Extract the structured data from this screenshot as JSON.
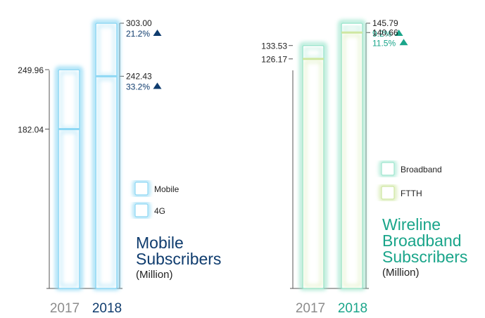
{
  "colors": {
    "mobile_blue": "#0f3c6e",
    "wireline_green": "#1aa58a",
    "year_grey": "#8c8c8c",
    "tick_text": "#222222",
    "axis_line": "#555555",
    "bar_blue_glow": "#8fd8f4",
    "bar_green_glow": "#cfe7a2",
    "bar_teal_glow": "#9fe6cf"
  },
  "chart_data": [
    {
      "type": "bar",
      "id": "mobile",
      "title_lines": [
        "Mobile",
        "Subscribers"
      ],
      "unit": "(Million)",
      "categories": [
        "2017",
        "2018"
      ],
      "series": [
        {
          "name": "Mobile",
          "values": [
            249.96,
            303.0
          ]
        },
        {
          "name": "4G",
          "values": [
            182.04,
            242.43
          ]
        }
      ],
      "left_axis_labels": [
        "249.96",
        "182.04"
      ],
      "right_axis_labels": [
        "303.00",
        "242.43"
      ],
      "growth": [
        {
          "series": "Mobile",
          "text": "21.2%",
          "direction": "up"
        },
        {
          "series": "4G",
          "text": "33.2%",
          "direction": "up"
        }
      ],
      "ylim": [
        0,
        303.0
      ],
      "legend": [
        "Mobile",
        "4G"
      ],
      "legend_position": "right"
    },
    {
      "type": "bar",
      "id": "wireline",
      "title_lines": [
        "Wireline",
        "Broadband",
        "Subscribers"
      ],
      "unit": "(Million)",
      "categories": [
        "2017",
        "2018"
      ],
      "series": [
        {
          "name": "Broadband",
          "values": [
            133.53,
            145.79
          ]
        },
        {
          "name": "FTTH",
          "values": [
            126.17,
            140.66
          ]
        }
      ],
      "left_axis_labels": [
        "133.53",
        "126.17"
      ],
      "right_axis_labels": [
        "145.79",
        "140.66"
      ],
      "growth": [
        {
          "series": "Broadband",
          "text": "9.2%",
          "direction": "up"
        },
        {
          "series": "FTTH",
          "text": "11.5%",
          "direction": "up"
        }
      ],
      "ylim": [
        0,
        145.79
      ],
      "legend": [
        "Broadband",
        "FTTH"
      ],
      "legend_position": "right"
    }
  ]
}
